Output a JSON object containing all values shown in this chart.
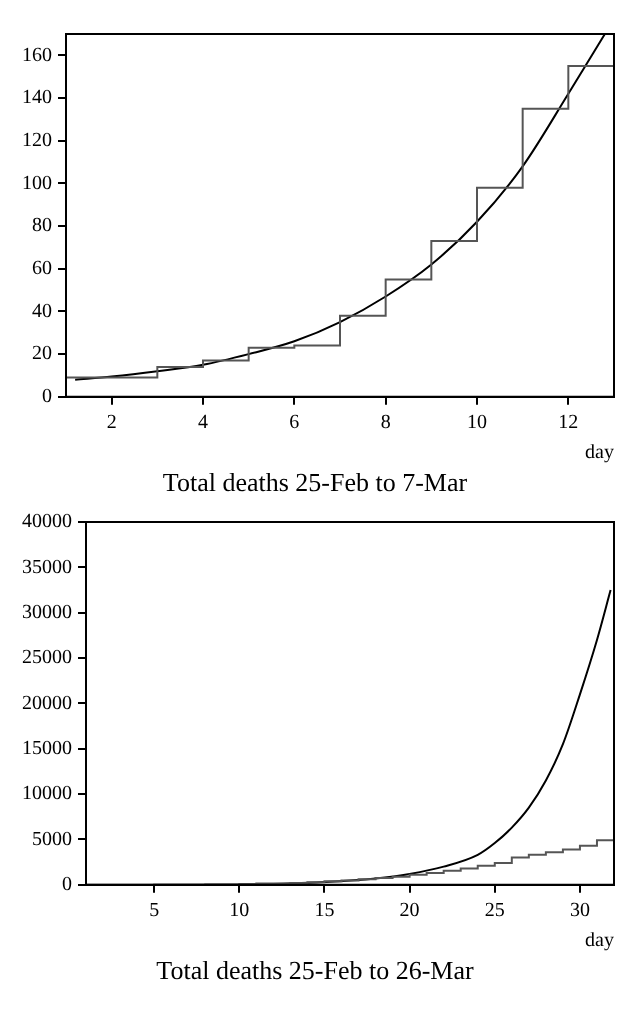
{
  "chart_data": [
    {
      "type": "histogram",
      "title": "Total deaths 25-Feb to 7-Mar",
      "xlabel": "day",
      "xlim": [
        1,
        13
      ],
      "xticks": [
        2,
        4,
        6,
        8,
        10,
        12
      ],
      "ylim": [
        0,
        170
      ],
      "yticks": [
        0,
        20,
        40,
        60,
        80,
        100,
        120,
        140,
        160
      ],
      "grid": false,
      "legend": false,
      "series": [
        {
          "color": "#555555",
          "bins": [
            1,
            2,
            3,
            4,
            5,
            6,
            7,
            8,
            9,
            10,
            11,
            12,
            13
          ],
          "values": [
            9,
            9,
            14,
            17,
            23,
            24,
            38,
            55,
            73,
            98,
            135,
            155
          ]
        },
        {
          "type": "line",
          "color": "#000000",
          "x": [
            1.2,
            2,
            3,
            4,
            5,
            6,
            7,
            8,
            9,
            10,
            11,
            12,
            12.8
          ],
          "values": [
            8,
            9.5,
            12,
            15,
            20,
            26,
            35,
            47,
            62,
            82,
            108,
            142,
            170
          ]
        }
      ]
    },
    {
      "type": "histogram",
      "title": "Total deaths 25-Feb to 26-Mar",
      "xlabel": "day",
      "xlim": [
        1,
        32
      ],
      "xticks": [
        5,
        10,
        15,
        20,
        25,
        30
      ],
      "ylim": [
        0,
        40000
      ],
      "yticks": [
        0,
        5000,
        10000,
        15000,
        20000,
        25000,
        30000,
        35000,
        40000
      ],
      "grid": false,
      "legend": false,
      "series": [
        {
          "color": "#555555",
          "bins": [
            1,
            2,
            3,
            4,
            5,
            6,
            7,
            8,
            9,
            10,
            11,
            12,
            13,
            14,
            15,
            16,
            17,
            18,
            19,
            20,
            21,
            22,
            23,
            24,
            25,
            26,
            27,
            28,
            29,
            30,
            31,
            32
          ],
          "values": [
            9,
            9,
            14,
            17,
            23,
            24,
            38,
            55,
            73,
            98,
            135,
            155,
            210,
            280,
            380,
            480,
            600,
            750,
            900,
            1100,
            1300,
            1550,
            1800,
            2100,
            2400,
            3000,
            3300,
            3600,
            3900,
            4300,
            4900
          ]
        },
        {
          "type": "line",
          "color": "#000000",
          "x": [
            10,
            12,
            15,
            18,
            20,
            22,
            24,
            25,
            26,
            27,
            28,
            29,
            30,
            31,
            31.8
          ],
          "values": [
            100,
            100,
            300,
            700,
            1200,
            2000,
            3300,
            4600,
            6300,
            8500,
            11500,
            15500,
            21000,
            27000,
            32500
          ]
        }
      ]
    }
  ]
}
